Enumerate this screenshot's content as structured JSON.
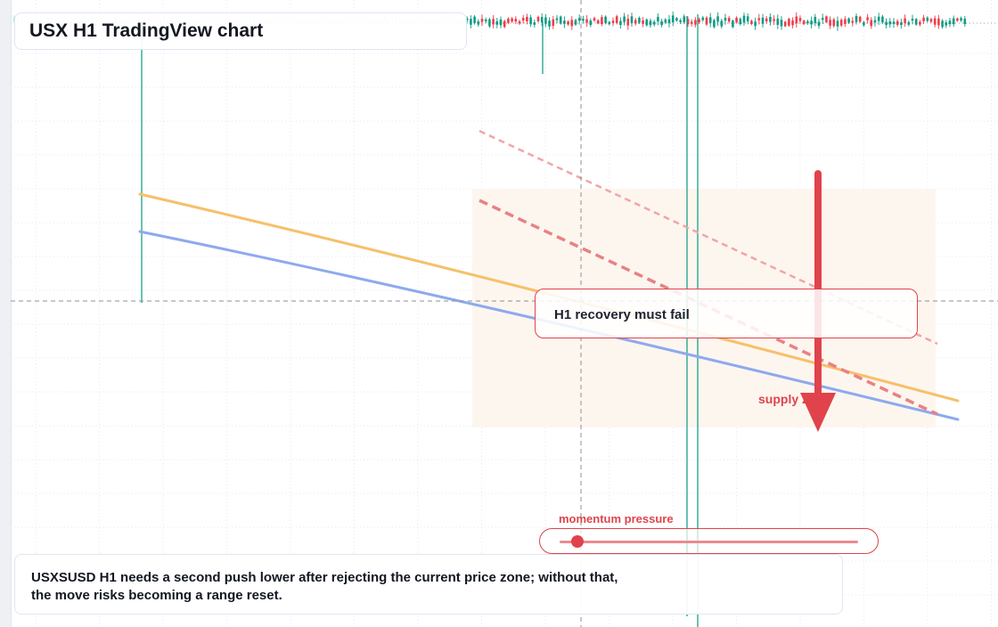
{
  "header": {
    "title": "USX H1 TradingView chart"
  },
  "callout": {
    "text": "H1 recovery must fail"
  },
  "zone": {
    "label": "supply zone"
  },
  "momentum": {
    "label": "momentum pressure",
    "level": 0.06
  },
  "note": {
    "line1": "USXSUSD H1 needs a second push lower after rejecting the current price zone; without that,",
    "line2": "the move risks becoming a range reset."
  },
  "colors": {
    "up": "#089981",
    "down": "#f23645",
    "accent": "#e0434b",
    "orange_line": "#f6c06a",
    "blue_line": "#8ea9ee",
    "zone_fill": "#fdf4ec"
  },
  "chart_data": {
    "type": "candlestick",
    "symbol": "USXSUSD",
    "timeframe": "H1",
    "grid": true,
    "crosshair": {
      "x": 652,
      "y": 338
    },
    "x_range": [
      0,
      100
    ],
    "y_range": [
      0,
      100
    ],
    "candle_strip": {
      "start": 16,
      "end": 1084,
      "mid": 24
    },
    "spikes": [
      {
        "x": 159,
        "top": 24,
        "bottom": 340
      },
      {
        "x": 609,
        "top": 24,
        "bottom": 83
      },
      {
        "x": 771,
        "top": 18,
        "bottom": 692
      },
      {
        "x": 783,
        "top": 16,
        "bottom": 704
      }
    ],
    "overlays": {
      "orange_curve": [
        [
          157,
          218
        ],
        [
          520,
          302
        ],
        [
          1075,
          450
        ]
      ],
      "blue_curve": [
        [
          157,
          260
        ],
        [
          500,
          330
        ],
        [
          1075,
          471
        ]
      ],
      "trend_upper": [
        [
          538,
          147
        ],
        [
          1052,
          386
        ]
      ],
      "trend_lower": [
        [
          538,
          225
        ],
        [
          1052,
          465
        ]
      ],
      "supply_zone": {
        "x0": 530,
        "y0": 212,
        "x1": 1050,
        "y1": 480
      },
      "arrow": {
        "x": 918,
        "top": 195,
        "tip": 485
      }
    }
  }
}
